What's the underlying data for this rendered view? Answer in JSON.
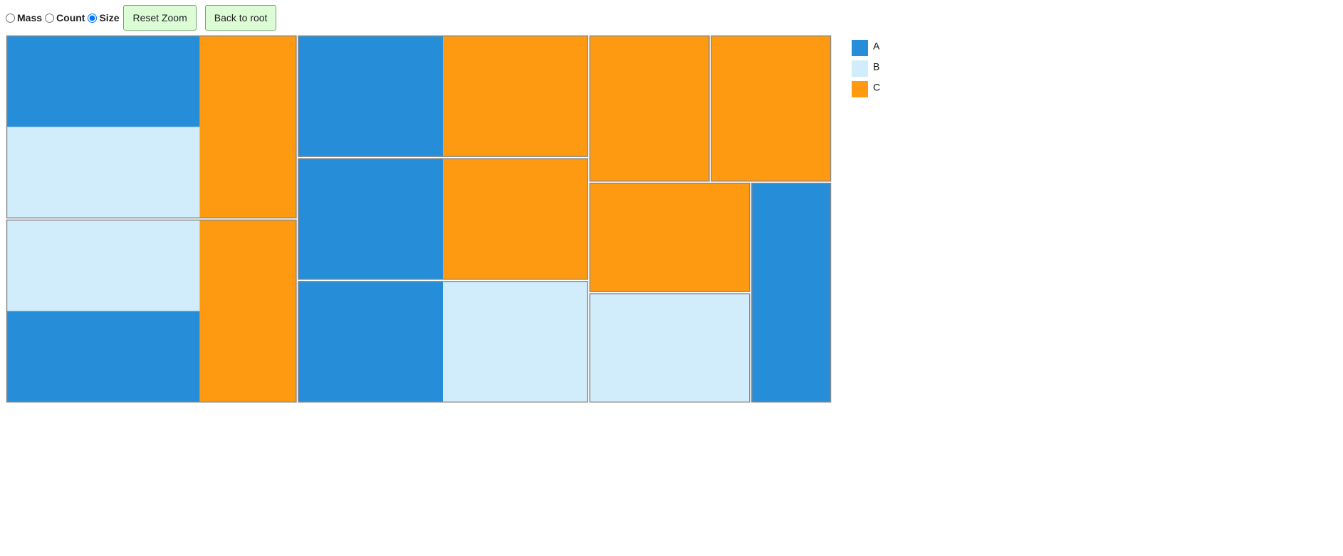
{
  "controls": {
    "modes": [
      "Mass",
      "Count",
      "Size"
    ],
    "selected_mode": 2,
    "buttons": [
      "Reset Zoom",
      "Back to root"
    ]
  },
  "chart_data": {
    "type": "treemap",
    "legend": [
      {
        "name": "A",
        "color": "#268ed8"
      },
      {
        "name": "B",
        "color": "#d1ecfb"
      },
      {
        "name": "C",
        "color": "#fd9a12"
      }
    ],
    "tree": [
      [
        {
          "cells": [
            [
              {
                "name": "A",
                "value": 1
              },
              {
                "name": "B",
                "value": 1
              }
            ],
            {
              "name": "C",
              "value": 1
            }
          ]
        },
        {
          "cells": [
            [
              {
                "name": "B",
                "value": 1
              },
              {
                "name": "A",
                "value": 1
              }
            ],
            {
              "name": "C",
              "value": 1
            }
          ]
        }
      ],
      [
        {
          "cells": [
            {
              "name": "A",
              "value": 1
            },
            {
              "name": "C",
              "value": 1
            }
          ]
        },
        {
          "cells": [
            {
              "name": "A",
              "value": 1
            },
            {
              "name": "C",
              "value": 1
            }
          ]
        },
        {
          "cells": [
            {
              "name": "A",
              "value": 1
            },
            {
              "name": "B",
              "value": 1
            }
          ]
        }
      ],
      [
        [
          {
            "cells": {
              "name": "C",
              "value": 1
            }
          },
          {
            "cells": {
              "name": "C",
              "value": 1
            }
          }
        ],
        [
          [
            {
              "cells": {
                "name": "C",
                "value": 1
              }
            },
            {
              "cells": {
                "name": "B",
                "value": 1
              }
            }
          ],
          {
            "cells": {
              "name": "A",
              "value": 1
            }
          }
        ]
      ]
    ]
  }
}
